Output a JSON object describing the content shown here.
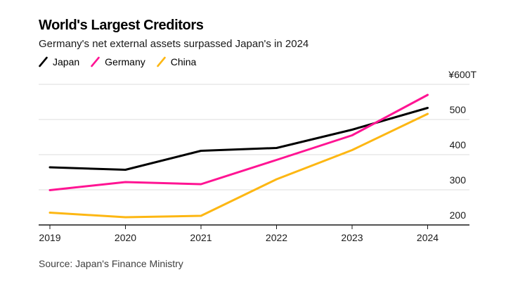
{
  "header": {
    "title": "World's Largest Creditors",
    "subtitle": "Germany's net external assets surpassed Japan's in 2024"
  },
  "source_note": "Source: Japan's Finance Ministry",
  "colors": {
    "japan_line": "#000000",
    "germany_line": "#ff1493",
    "china_line": "#fdb713",
    "gridline": "#dcdcdc",
    "axis": "#1a1a1a",
    "background": "#ffffff"
  },
  "chart_data": {
    "type": "line",
    "title": "World's Largest Creditors",
    "subtitle": "Germany's net external assets surpassed Japan's in 2024",
    "unit": "trillion yen",
    "x": [
      2019,
      2020,
      2021,
      2022,
      2023,
      2024
    ],
    "x_tick_labels": [
      "2019",
      "2020",
      "2021",
      "2022",
      "2023",
      "2024"
    ],
    "series": [
      {
        "name": "Japan",
        "color": "#000000",
        "values": [
          364,
          357,
          411,
          419,
          471,
          533
        ]
      },
      {
        "name": "Germany",
        "color": "#ff1493",
        "values": [
          299,
          322,
          316,
          385,
          455,
          570
        ]
      },
      {
        "name": "China",
        "color": "#fdb713",
        "values": [
          235,
          222,
          226,
          330,
          413,
          516
        ]
      }
    ],
    "y_axis": {
      "side": "right",
      "ylim": [
        200,
        600
      ],
      "tick_values": [
        200,
        300,
        400,
        500,
        600
      ],
      "tick_labels": [
        "200",
        "300",
        "400",
        "500",
        "¥600T"
      ],
      "top_label": "¥600T"
    },
    "grid": "horizontal",
    "legend_position": "top-left",
    "source": "Source: Japan's Finance Ministry"
  }
}
